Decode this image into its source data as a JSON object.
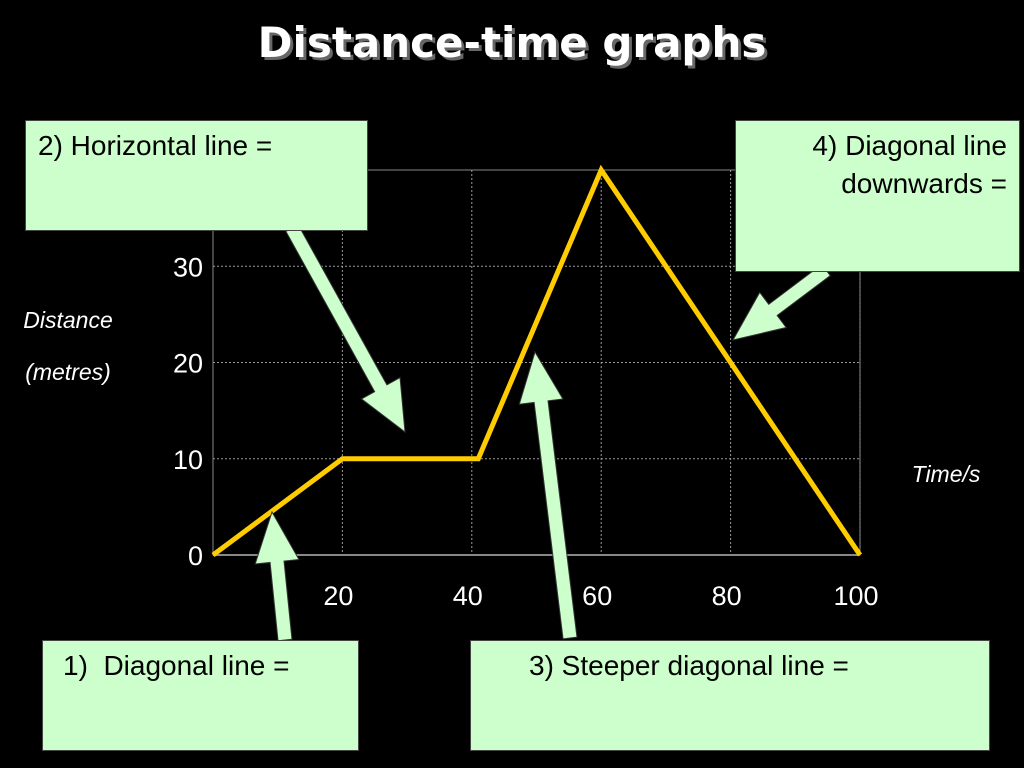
{
  "chart_data": {
    "type": "line",
    "title": "Distance-time graphs",
    "y_label_lines": [
      "Distance",
      "(metres)"
    ],
    "x_label": "Time/s",
    "x": [
      0,
      20,
      41,
      60,
      100
    ],
    "values": [
      0,
      10,
      10,
      40,
      0
    ],
    "color": "#ffcc00",
    "xlim": [
      0,
      100
    ],
    "xticks": [
      20,
      40,
      60,
      80,
      100
    ],
    "ylim": [
      0,
      40
    ],
    "yticks": [
      0,
      10,
      20,
      30
    ],
    "grid": true,
    "annotations": [
      "2) Horizontal line =",
      "4) Diagonal line downwards =",
      "1)  Diagonal line =",
      "3) Steeper diagonal line ="
    ]
  }
}
